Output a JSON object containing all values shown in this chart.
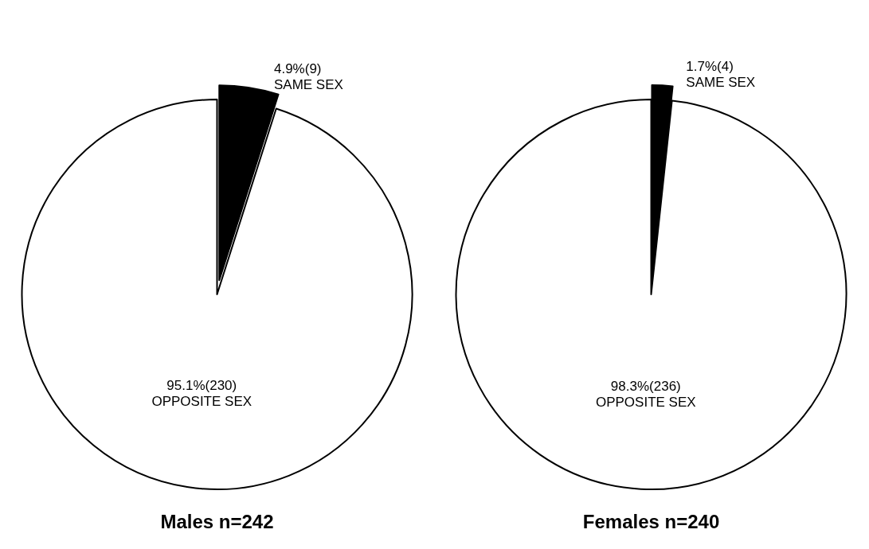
{
  "chart_data": [
    {
      "type": "pie",
      "title": "Males n=242",
      "categories": [
        "SAME SEX",
        "OPPOSITE SEX"
      ],
      "values": [
        4.9,
        95.1
      ],
      "value_labels": [
        "4.9%(9)",
        "95.1%(230)"
      ],
      "colors": [
        "#000000",
        "#ffffff"
      ],
      "legend": false
    },
    {
      "type": "pie",
      "title": "Females n=240",
      "categories": [
        "SAME SEX",
        "OPPOSITE SEX"
      ],
      "values": [
        1.7,
        98.3
      ],
      "value_labels": [
        "1.7%(4)",
        "98.3%(236)"
      ],
      "colors": [
        "#000000",
        "#ffffff"
      ],
      "legend": false
    }
  ]
}
